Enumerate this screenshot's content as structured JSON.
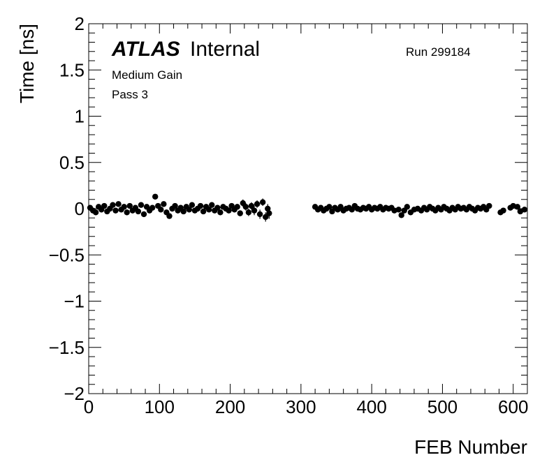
{
  "chart_data": {
    "type": "scatter",
    "title": "",
    "xlabel": "FEB Number",
    "ylabel": "Time [ns]",
    "xlim": [
      0,
      620
    ],
    "ylim": [
      -2,
      2
    ],
    "x_ticks": [
      {
        "v": 0,
        "label": "0"
      },
      {
        "v": 100,
        "label": "100"
      },
      {
        "v": 200,
        "label": "200"
      },
      {
        "v": 300,
        "label": "300"
      },
      {
        "v": 400,
        "label": "400"
      },
      {
        "v": 500,
        "label": "500"
      },
      {
        "v": 600,
        "label": "600"
      }
    ],
    "y_ticks": [
      {
        "v": 2,
        "label": "2"
      },
      {
        "v": 1.5,
        "label": "1.5"
      },
      {
        "v": 1,
        "label": "1"
      },
      {
        "v": 0.5,
        "label": "0.5"
      },
      {
        "v": 0,
        "label": "0"
      },
      {
        "v": -0.5,
        "label": "−0.5"
      },
      {
        "v": -1,
        "label": "−1"
      },
      {
        "v": -1.5,
        "label": "−1.5"
      },
      {
        "v": -2,
        "label": "−2"
      }
    ],
    "grid": false,
    "marker_color": "#000000",
    "annotations": {
      "atlas": "ATLAS",
      "internal": "Internal",
      "run": "Run 299184",
      "gain": "Medium Gain",
      "pass": "Pass 3"
    },
    "series": [
      {
        "points": [
          [
            2,
            0.01,
            0.02
          ],
          [
            6,
            -0.02,
            0.03
          ],
          [
            10,
            -0.04,
            0.03
          ],
          [
            14,
            0.02,
            0.02
          ],
          [
            18,
            -0.01,
            0.03
          ],
          [
            22,
            0.03,
            0.02
          ],
          [
            26,
            -0.03,
            0.03
          ],
          [
            30,
            0.0,
            0.02
          ],
          [
            34,
            0.04,
            0.03
          ],
          [
            38,
            -0.02,
            0.03
          ],
          [
            42,
            0.05,
            0.02
          ],
          [
            46,
            -0.01,
            0.03
          ],
          [
            50,
            0.02,
            0.03
          ],
          [
            54,
            -0.04,
            0.03
          ],
          [
            58,
            0.03,
            0.02
          ],
          [
            62,
            -0.02,
            0.03
          ],
          [
            66,
            0.01,
            0.02
          ],
          [
            70,
            -0.03,
            0.03
          ],
          [
            74,
            0.04,
            0.03
          ],
          [
            78,
            -0.06,
            0.03
          ],
          [
            82,
            0.02,
            0.02
          ],
          [
            86,
            -0.02,
            0.03
          ],
          [
            90,
            0.01,
            0.02
          ],
          [
            94,
            0.13,
            0.02
          ],
          [
            98,
            0.03,
            0.03
          ],
          [
            102,
            -0.01,
            0.03
          ],
          [
            106,
            0.05,
            0.02
          ],
          [
            110,
            -0.04,
            0.03
          ],
          [
            114,
            -0.08,
            0.03
          ],
          [
            118,
            0.0,
            0.02
          ],
          [
            122,
            0.03,
            0.03
          ],
          [
            126,
            -0.02,
            0.03
          ],
          [
            130,
            0.01,
            0.02
          ],
          [
            134,
            -0.03,
            0.03
          ],
          [
            138,
            0.02,
            0.02
          ],
          [
            142,
            -0.01,
            0.03
          ],
          [
            146,
            0.04,
            0.03
          ],
          [
            150,
            -0.02,
            0.02
          ],
          [
            154,
            0.0,
            0.03
          ],
          [
            158,
            0.03,
            0.02
          ],
          [
            162,
            -0.03,
            0.03
          ],
          [
            166,
            0.02,
            0.03
          ],
          [
            170,
            -0.01,
            0.02
          ],
          [
            174,
            0.04,
            0.03
          ],
          [
            178,
            -0.02,
            0.02
          ],
          [
            182,
            0.01,
            0.03
          ],
          [
            186,
            -0.04,
            0.03
          ],
          [
            190,
            0.02,
            0.02
          ],
          [
            194,
            0.0,
            0.03
          ],
          [
            198,
            -0.02,
            0.03
          ],
          [
            202,
            0.03,
            0.02
          ],
          [
            206,
            -0.01,
            0.03
          ],
          [
            210,
            0.02,
            0.03
          ],
          [
            214,
            -0.05,
            0.03
          ],
          [
            218,
            0.06,
            0.04
          ],
          [
            222,
            0.02,
            0.04
          ],
          [
            226,
            -0.04,
            0.04
          ],
          [
            230,
            0.03,
            0.04
          ],
          [
            234,
            -0.02,
            0.05
          ],
          [
            238,
            0.05,
            0.04
          ],
          [
            242,
            -0.06,
            0.05
          ],
          [
            246,
            0.07,
            0.04
          ],
          [
            250,
            -0.09,
            0.05
          ],
          [
            253,
            0.0,
            0.05
          ],
          [
            255,
            -0.05,
            0.06
          ],
          [
            320,
            0.02,
            0.02
          ],
          [
            324,
            -0.01,
            0.02
          ],
          [
            328,
            0.01,
            0.02
          ],
          [
            332,
            -0.02,
            0.02
          ],
          [
            336,
            0.0,
            0.02
          ],
          [
            340,
            0.02,
            0.02
          ],
          [
            344,
            -0.03,
            0.02
          ],
          [
            348,
            0.01,
            0.02
          ],
          [
            352,
            -0.01,
            0.02
          ],
          [
            356,
            0.02,
            0.02
          ],
          [
            360,
            -0.02,
            0.02
          ],
          [
            364,
            0.0,
            0.02
          ],
          [
            368,
            0.01,
            0.02
          ],
          [
            372,
            -0.01,
            0.02
          ],
          [
            376,
            0.03,
            0.02
          ],
          [
            380,
            0.0,
            0.02
          ],
          [
            384,
            -0.01,
            0.02
          ],
          [
            388,
            0.01,
            0.02
          ],
          [
            392,
            0.0,
            0.02
          ],
          [
            396,
            0.02,
            0.02
          ],
          [
            400,
            -0.01,
            0.02
          ],
          [
            404,
            0.01,
            0.02
          ],
          [
            408,
            0.0,
            0.02
          ],
          [
            412,
            0.02,
            0.02
          ],
          [
            416,
            -0.01,
            0.02
          ],
          [
            420,
            0.01,
            0.02
          ],
          [
            424,
            0.0,
            0.02
          ],
          [
            428,
            0.01,
            0.02
          ],
          [
            432,
            -0.02,
            0.02
          ],
          [
            438,
            -0.01,
            0.02
          ],
          [
            442,
            -0.07,
            0.02
          ],
          [
            446,
            -0.02,
            0.02
          ],
          [
            450,
            0.02,
            0.02
          ],
          [
            455,
            -0.04,
            0.02
          ],
          [
            460,
            -0.01,
            0.02
          ],
          [
            465,
            0.0,
            0.02
          ],
          [
            470,
            -0.02,
            0.02
          ],
          [
            474,
            0.01,
            0.02
          ],
          [
            478,
            -0.01,
            0.02
          ],
          [
            482,
            0.02,
            0.02
          ],
          [
            486,
            0.0,
            0.02
          ],
          [
            490,
            -0.02,
            0.02
          ],
          [
            494,
            0.01,
            0.02
          ],
          [
            498,
            -0.01,
            0.02
          ],
          [
            502,
            0.02,
            0.02
          ],
          [
            506,
            0.0,
            0.02
          ],
          [
            510,
            -0.02,
            0.02
          ],
          [
            514,
            0.01,
            0.02
          ],
          [
            518,
            -0.01,
            0.02
          ],
          [
            522,
            0.02,
            0.02
          ],
          [
            526,
            0.0,
            0.02
          ],
          [
            530,
            0.01,
            0.02
          ],
          [
            534,
            -0.01,
            0.02
          ],
          [
            538,
            0.02,
            0.02
          ],
          [
            542,
            0.0,
            0.02
          ],
          [
            546,
            -0.02,
            0.02
          ],
          [
            550,
            0.01,
            0.02
          ],
          [
            554,
            0.0,
            0.02
          ],
          [
            558,
            0.02,
            0.02
          ],
          [
            562,
            -0.01,
            0.02
          ],
          [
            566,
            0.03,
            0.02
          ],
          [
            582,
            -0.04,
            0.02
          ],
          [
            586,
            -0.02,
            0.02
          ],
          [
            596,
            0.01,
            0.02
          ],
          [
            600,
            0.03,
            0.02
          ],
          [
            606,
            0.02,
            0.02
          ],
          [
            610,
            -0.03,
            0.02
          ],
          [
            616,
            -0.01,
            0.02
          ]
        ]
      }
    ]
  }
}
